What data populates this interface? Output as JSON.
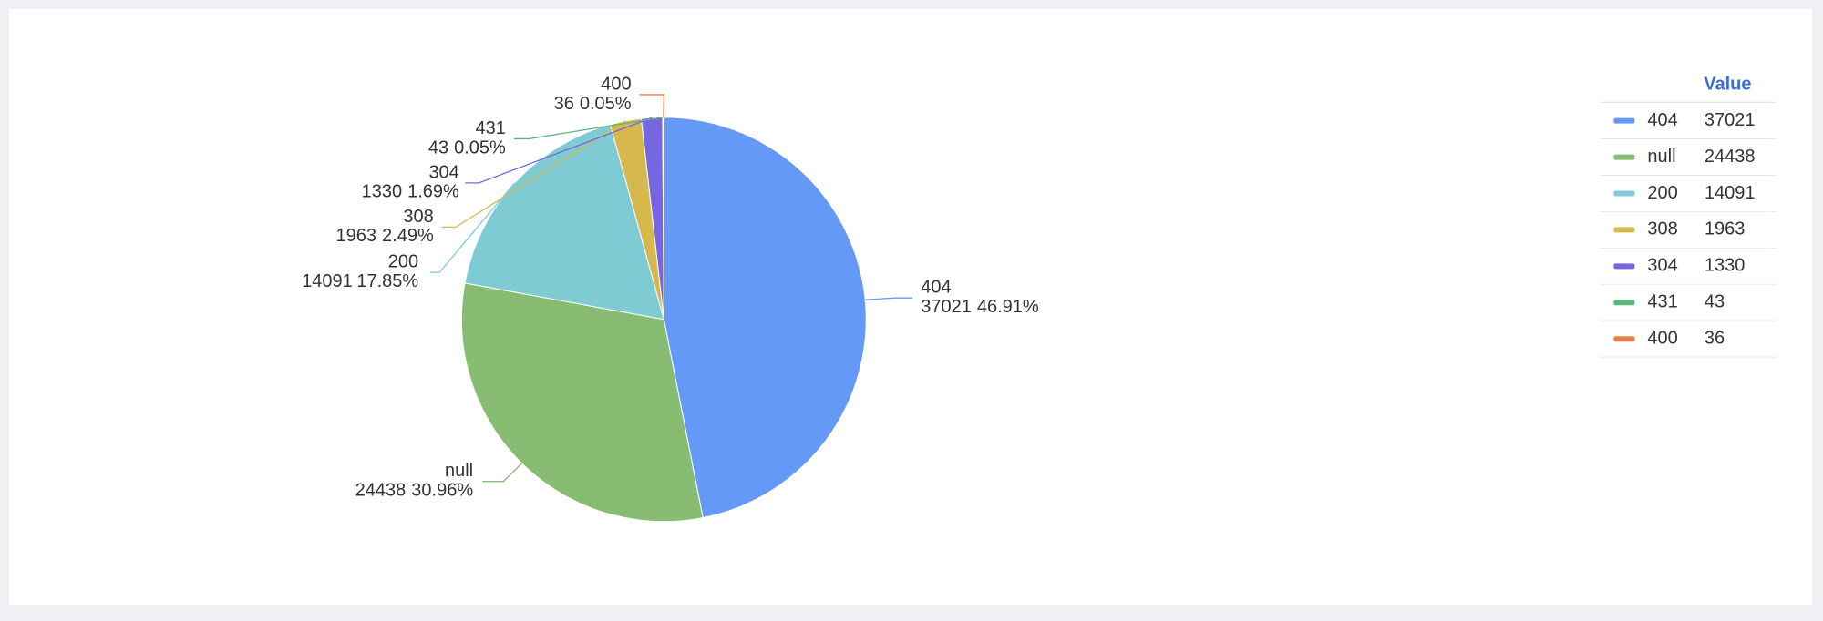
{
  "chart_data": {
    "type": "pie",
    "categories": [
      "404",
      "null",
      "200",
      "308",
      "304",
      "431",
      "400"
    ],
    "values": [
      37021,
      24438,
      14091,
      1963,
      1330,
      43,
      36
    ],
    "percent_labels": [
      "46.91%",
      "30.96%",
      "17.85%",
      "2.49%",
      "1.69%",
      "0.05%",
      "0.05%"
    ],
    "colors": [
      "#6499f7",
      "#88bc73",
      "#7ecbd4",
      "#d6b94d",
      "#7467e0",
      "#5db57e",
      "#e8804d"
    ],
    "legend_header": "Value",
    "legend": "right"
  }
}
